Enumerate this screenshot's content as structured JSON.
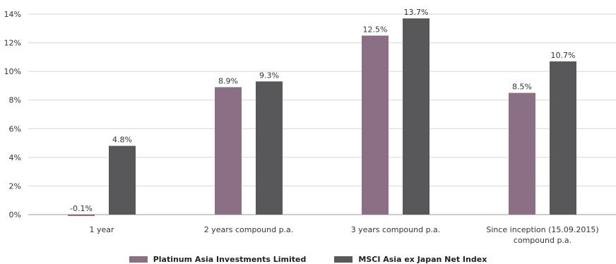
{
  "chart_data": {
    "type": "bar",
    "categories": [
      [
        "1 year"
      ],
      [
        "2 years compound p.a."
      ],
      [
        "3 years compound p.a."
      ],
      [
        "Since inception (15.09.2015)",
        "compound p.a."
      ]
    ],
    "series": [
      {
        "name": "Platinum Asia Investments Limited",
        "values": [
          -0.1,
          8.9,
          12.5,
          8.5
        ],
        "labels": [
          "-0.1%",
          "8.9%",
          "12.5%",
          "8.5%"
        ],
        "color": "#8b7085"
      },
      {
        "name": "MSCI Asia ex Japan Net Index",
        "values": [
          4.8,
          9.3,
          13.7,
          10.7
        ],
        "labels": [
          "4.8%",
          "9.3%",
          "13.7%",
          "10.7%"
        ],
        "color": "#58585a"
      }
    ],
    "yticks": [
      "0%",
      "2%",
      "4%",
      "6%",
      "8%",
      "10%",
      "12%",
      "14%"
    ],
    "ylim": [
      0,
      14
    ],
    "grid": true,
    "legend_position": "bottom"
  }
}
